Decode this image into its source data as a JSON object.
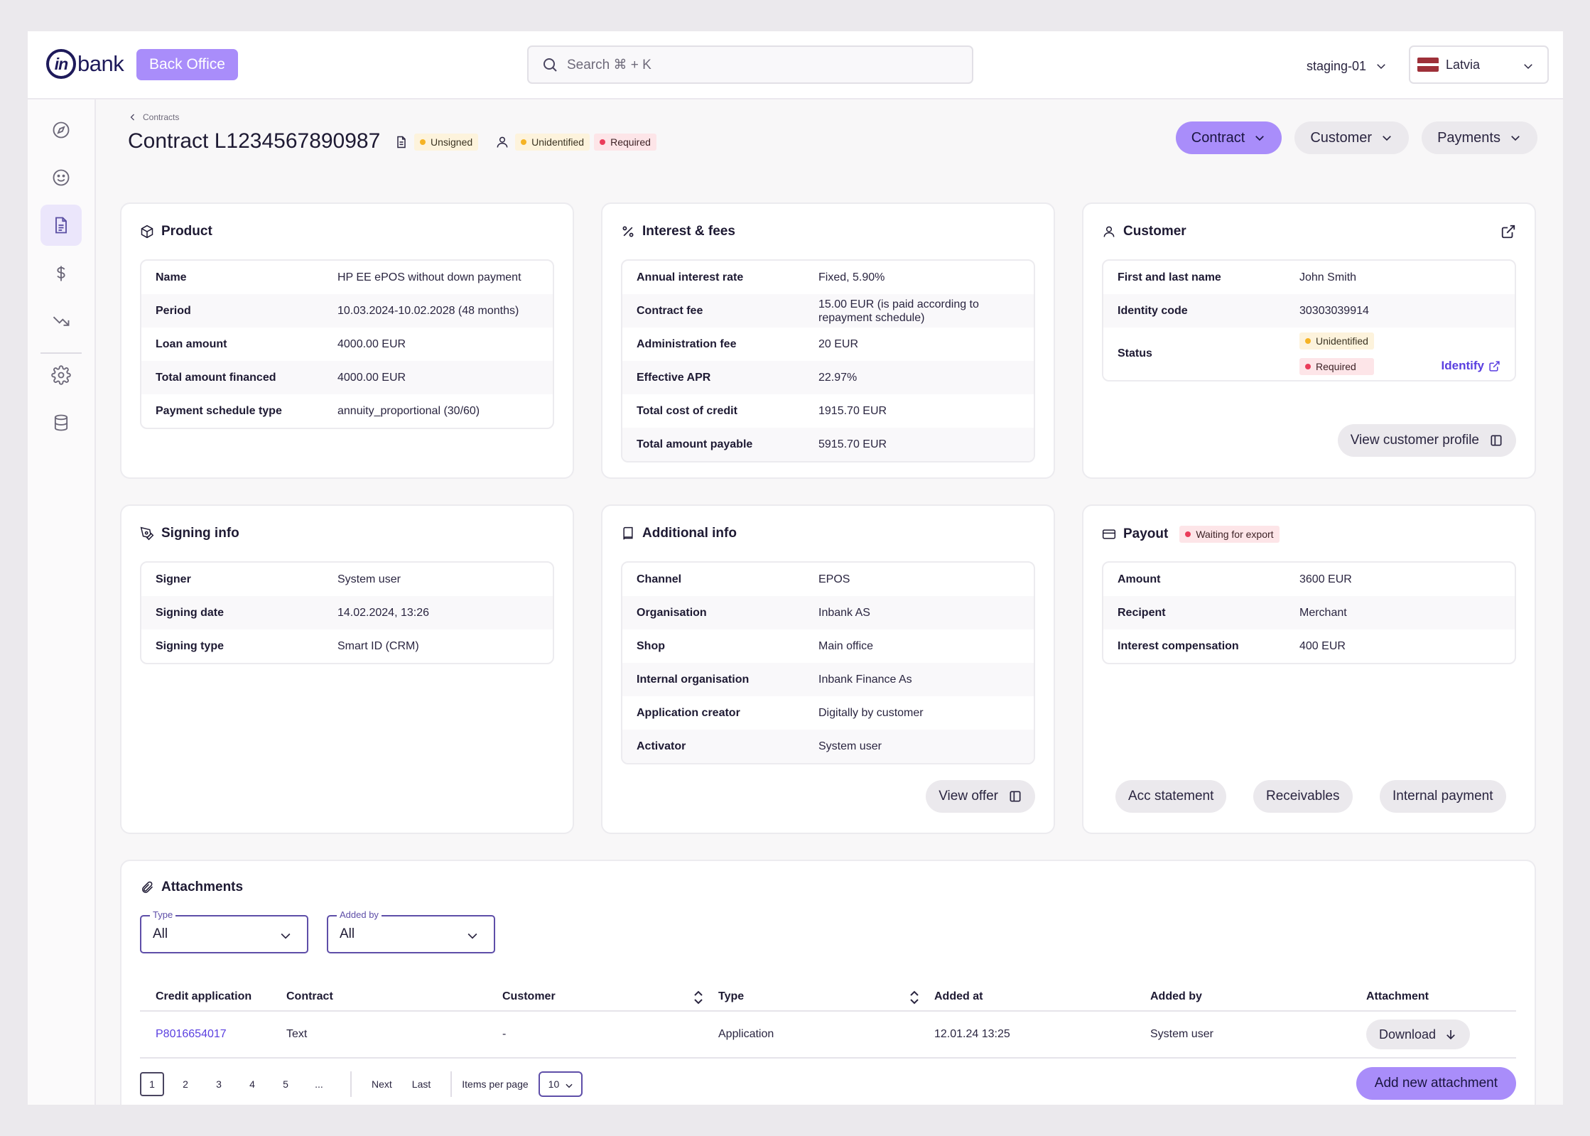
{
  "header": {
    "logo_text": "bank",
    "logo_mark": "in",
    "back_office": "Back Office",
    "search_placeholder": "Search ⌘ + K",
    "environment": "staging-01",
    "country": "Latvia",
    "country_flag_colors": [
      "#9e3039",
      "#ffffff",
      "#9e3039"
    ]
  },
  "sidebar": {
    "items": [
      {
        "icon": "compass-icon"
      },
      {
        "icon": "smiley-icon"
      },
      {
        "icon": "document-icon",
        "active": true
      },
      {
        "icon": "dollar-icon"
      },
      {
        "icon": "trending-down-icon"
      },
      {
        "icon": "gear-icon"
      },
      {
        "icon": "database-icon"
      }
    ]
  },
  "page": {
    "breadcrumb": "Contracts",
    "title": "Contract L1234567890987",
    "badges": {
      "signing": "Unsigned",
      "identification": "Unidentified",
      "required": "Required"
    },
    "actions": [
      "Contract",
      "Customer",
      "Payments"
    ]
  },
  "product": {
    "title": "Product",
    "rows": [
      {
        "key": "Name",
        "value": "HP EE ePOS without down payment"
      },
      {
        "key": "Period",
        "value": "10.03.2024-10.02.2028 (48 months)"
      },
      {
        "key": "Loan amount",
        "value": "4000.00 EUR"
      },
      {
        "key": "Total amount financed",
        "value": "4000.00 EUR"
      },
      {
        "key": "Payment schedule type",
        "value": "annuity_proportional (30/60)"
      }
    ]
  },
  "interest": {
    "title": "Interest & fees",
    "rows": [
      {
        "key": "Annual interest rate",
        "value": "Fixed, 5.90%"
      },
      {
        "key": "Contract fee",
        "value": "15.00 EUR (is paid according to repayment schedule)"
      },
      {
        "key": "Administration fee",
        "value": "20 EUR"
      },
      {
        "key": "Effective APR",
        "value": "22.97%"
      },
      {
        "key": "Total cost of credit",
        "value": "1915.70 EUR"
      },
      {
        "key": "Total amount payable",
        "value": "5915.70 EUR"
      }
    ]
  },
  "customer": {
    "title": "Customer",
    "rows": [
      {
        "key": "First and last name",
        "value": "John Smith"
      },
      {
        "key": "Identity code",
        "value": "30303039914"
      }
    ],
    "status_key": "Status",
    "status_badges": [
      "Unidentified",
      "Required"
    ],
    "identify_link": "Identify",
    "view_profile": "View customer profile"
  },
  "signing": {
    "title": "Signing  info",
    "rows": [
      {
        "key": "Signer",
        "value": "System user"
      },
      {
        "key": "Signing date",
        "value": "14.02.2024, 13:26"
      },
      {
        "key": "Signing type",
        "value": "Smart ID (CRM)"
      }
    ]
  },
  "additional": {
    "title": "Additional  info",
    "rows": [
      {
        "key": "Channel",
        "value": "EPOS"
      },
      {
        "key": "Organisation",
        "value": "Inbank AS"
      },
      {
        "key": "Shop",
        "value": "Main office"
      },
      {
        "key": "Internal organisation",
        "value": "Inbank Finance As"
      },
      {
        "key": "Application creator",
        "value": "Digitally by customer"
      },
      {
        "key": "Activator",
        "value": "System user"
      }
    ],
    "view_offer": "View offer"
  },
  "payout": {
    "title": "Payout",
    "badge": "Waiting for export",
    "rows": [
      {
        "key": "Amount",
        "value": "3600 EUR"
      },
      {
        "key": "Recipent",
        "value": "Merchant"
      },
      {
        "key": "Interest compensation",
        "value": "400 EUR"
      }
    ],
    "buttons": [
      "Acc statement",
      "Receivables",
      "Internal payment"
    ]
  },
  "attachments": {
    "title": "Attachments",
    "filters": [
      {
        "label": "Type",
        "value": "All"
      },
      {
        "label": "Added by",
        "value": "All"
      }
    ],
    "columns": [
      "Credit application",
      "Contract",
      "Customer",
      "Type",
      "Added at",
      "Added by",
      "Attachment"
    ],
    "rows": [
      {
        "credit_application": "P8016654017",
        "contract": "Text",
        "customer": "-",
        "type": "Application",
        "added_at": "12.01.24 13:25",
        "added_by": "System user",
        "attachment": "Download"
      }
    ],
    "pagination": {
      "pages": [
        "1",
        "2",
        "3",
        "4",
        "5",
        "..."
      ],
      "current": "1",
      "next": "Next",
      "last": "Last",
      "items_per_page_label": "Items per page",
      "items_per_page": "10"
    },
    "add_button": "Add new attachment"
  }
}
